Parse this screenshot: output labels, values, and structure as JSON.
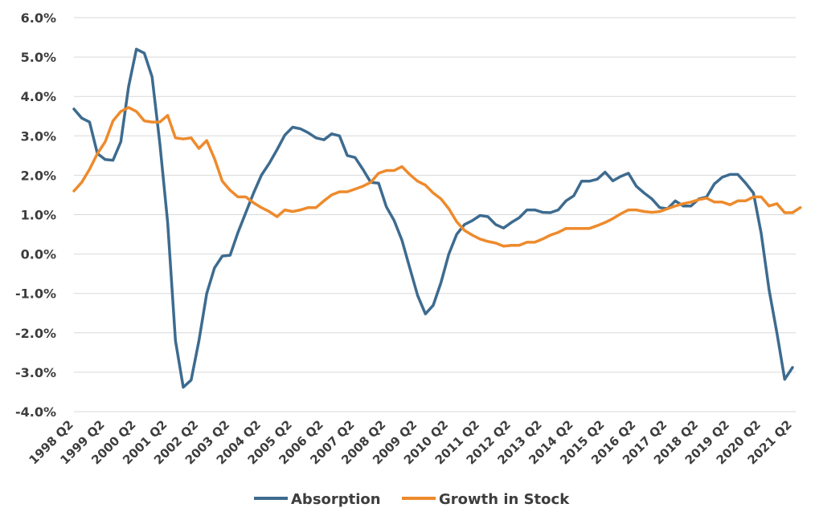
{
  "chart_data": {
    "type": "line",
    "title": "",
    "xlabel": "",
    "ylabel": "",
    "ylim": [
      -4.0,
      6.0
    ],
    "yticks": [
      "6.0%",
      "5.0%",
      "4.0%",
      "3.0%",
      "2.0%",
      "1.0%",
      "0.0%",
      "-1.0%",
      "-2.0%",
      "-3.0%",
      "-4.0%"
    ],
    "ytick_values": [
      6,
      5,
      4,
      3,
      2,
      1,
      0,
      -1,
      -2,
      -3,
      -4
    ],
    "x_start": "1998 Q2",
    "x_end": "2021 Q2",
    "xtick_labels": [
      "1998 Q2",
      "1999 Q2",
      "2000 Q2",
      "2001 Q2",
      "2002 Q2",
      "2003 Q2",
      "2004 Q2",
      "2005 Q2",
      "2006 Q2",
      "2007 Q2",
      "2008 Q2",
      "2009 Q2",
      "2010 Q2",
      "2011 Q2",
      "2012 Q2",
      "2013 Q2",
      "2014 Q2",
      "2015 Q2",
      "2016 Q2",
      "2017 Q2",
      "2018 Q2",
      "2019 Q2",
      "2020 Q2",
      "2021 Q2"
    ],
    "grid": true,
    "legend_position": "bottom-center",
    "series": [
      {
        "name": "Absorption",
        "color": "#3d6b8f",
        "values": [
          3.68,
          3.45,
          3.35,
          2.55,
          2.4,
          2.38,
          2.85,
          4.25,
          5.2,
          5.1,
          4.5,
          2.8,
          0.8,
          -2.2,
          -3.38,
          -3.2,
          -2.2,
          -1.0,
          -0.35,
          -0.05,
          -0.03,
          0.55,
          1.05,
          1.55,
          2.0,
          2.3,
          2.65,
          3.02,
          3.22,
          3.18,
          3.08,
          2.95,
          2.9,
          3.05,
          3.0,
          2.5,
          2.45,
          2.15,
          1.82,
          1.8,
          1.2,
          0.85,
          0.35,
          -0.35,
          -1.05,
          -1.52,
          -1.3,
          -0.72,
          0.0,
          0.5,
          0.75,
          0.85,
          0.98,
          0.95,
          0.75,
          0.66,
          0.8,
          0.92,
          1.12,
          1.12,
          1.06,
          1.05,
          1.12,
          1.35,
          1.48,
          1.85,
          1.85,
          1.9,
          2.08,
          1.86,
          1.97,
          2.05,
          1.72,
          1.55,
          1.4,
          1.18,
          1.15,
          1.35,
          1.22,
          1.22,
          1.4,
          1.45,
          1.78,
          1.95,
          2.02,
          2.02,
          1.8,
          1.55,
          0.52,
          -0.9,
          -2.0,
          -3.18,
          -2.88
        ]
      },
      {
        "name": "Growth in Stock",
        "color": "#ee8a2c",
        "values": [
          1.6,
          1.82,
          2.15,
          2.55,
          2.85,
          3.38,
          3.62,
          3.72,
          3.62,
          3.38,
          3.35,
          3.35,
          3.52,
          2.95,
          2.92,
          2.95,
          2.68,
          2.88,
          2.42,
          1.85,
          1.62,
          1.45,
          1.45,
          1.3,
          1.18,
          1.08,
          0.95,
          1.12,
          1.08,
          1.12,
          1.18,
          1.18,
          1.35,
          1.5,
          1.58,
          1.58,
          1.65,
          1.72,
          1.82,
          2.05,
          2.12,
          2.12,
          2.22,
          2.02,
          1.85,
          1.75,
          1.55,
          1.4,
          1.15,
          0.82,
          0.6,
          0.48,
          0.38,
          0.32,
          0.28,
          0.2,
          0.22,
          0.22,
          0.3,
          0.3,
          0.38,
          0.48,
          0.55,
          0.65,
          0.65,
          0.65,
          0.65,
          0.72,
          0.8,
          0.9,
          1.02,
          1.12,
          1.12,
          1.08,
          1.06,
          1.08,
          1.15,
          1.22,
          1.28,
          1.32,
          1.38,
          1.42,
          1.32,
          1.32,
          1.25,
          1.35,
          1.35,
          1.45,
          1.45,
          1.22,
          1.28,
          1.05,
          1.05,
          1.18
        ]
      }
    ]
  }
}
